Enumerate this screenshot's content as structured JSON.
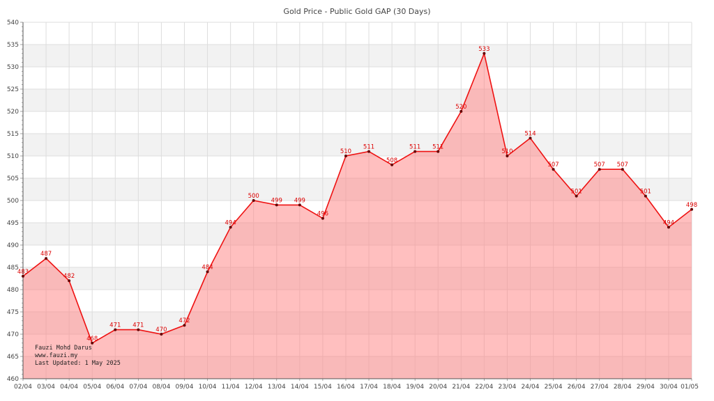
{
  "chart_data": {
    "type": "area",
    "title": "Gold Price - Public Gold GAP (30 Days)",
    "xlabel": "",
    "ylabel": "",
    "ylim": [
      460,
      540
    ],
    "y_ticks": [
      460,
      465,
      470,
      475,
      480,
      485,
      490,
      495,
      500,
      505,
      510,
      515,
      520,
      525,
      530,
      535,
      540
    ],
    "categories": [
      "02/04",
      "03/04",
      "04/04",
      "05/04",
      "06/04",
      "07/04",
      "08/04",
      "09/04",
      "10/04",
      "11/04",
      "12/04",
      "13/04",
      "14/04",
      "15/04",
      "16/04",
      "17/04",
      "18/04",
      "19/04",
      "20/04",
      "21/04",
      "22/04",
      "23/04",
      "24/04",
      "25/04",
      "26/04",
      "27/04",
      "28/04",
      "29/04",
      "30/04",
      "01/05"
    ],
    "series": [
      {
        "values": [
          483,
          487,
          482,
          468,
          471,
          471,
          470,
          472,
          484,
          494,
          500,
          499,
          499,
          496,
          510,
          511,
          508,
          511,
          511,
          520,
          533,
          510,
          514,
          507,
          501,
          507,
          507,
          501,
          494,
          498
        ]
      }
    ],
    "grid": true,
    "data_labels": true,
    "colors": {
      "line": "#ee1111",
      "fill": "#ff8080",
      "marker": "#660000",
      "band": "#f2f2f2",
      "grid": "#dddddd"
    },
    "credit_lines": [
      "Fauzi Mohd Darus",
      "www.fauzi.my",
      "Last Updated: 1 May 2025"
    ]
  }
}
